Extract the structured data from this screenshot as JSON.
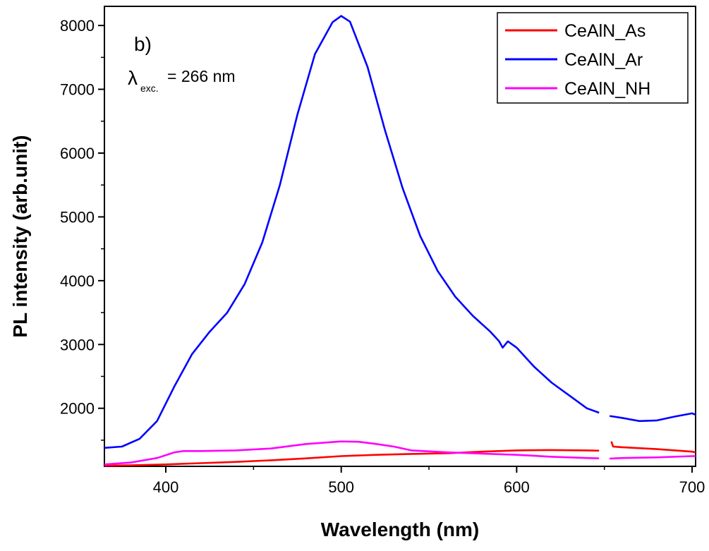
{
  "chart_data": {
    "type": "line",
    "panel_label": "b)",
    "annotation": {
      "symbol": "λ",
      "subscript": "exc.",
      "text": "= 266 nm"
    },
    "xlabel": "Wavelength (nm)",
    "ylabel": "PL intensity (arb.unit)",
    "xlim": [
      365,
      702
    ],
    "ylim": [
      1090,
      8300
    ],
    "xticks": [
      400,
      500,
      600,
      700
    ],
    "yticks": [
      2000,
      3000,
      4000,
      5000,
      6000,
      7000,
      8000
    ],
    "grid": false,
    "legend_position": "top-right",
    "series": [
      {
        "name": "CeAlN_As",
        "color": "#ff0000",
        "x": [
          365,
          380,
          400,
          420,
          440,
          460,
          480,
          500,
          520,
          540,
          560,
          580,
          600,
          620,
          640,
          647,
          null,
          654,
          655,
          660,
          680,
          700,
          702
        ],
        "y": [
          1100,
          1105,
          1120,
          1140,
          1160,
          1185,
          1215,
          1250,
          1270,
          1285,
          1295,
          1320,
          1340,
          1345,
          1340,
          1335,
          null,
          1480,
          1400,
          1390,
          1360,
          1320,
          1310
        ]
      },
      {
        "name": "CeAlN_Ar",
        "color": "#0000ff",
        "x": [
          365,
          375,
          385,
          395,
          405,
          415,
          425,
          435,
          445,
          455,
          465,
          475,
          485,
          495,
          500,
          505,
          515,
          525,
          535,
          545,
          555,
          565,
          575,
          585,
          590,
          592,
          595,
          600,
          610,
          620,
          630,
          640,
          647,
          null,
          653,
          660,
          670,
          680,
          690,
          700,
          702
        ],
        "y": [
          1380,
          1400,
          1520,
          1800,
          2350,
          2850,
          3200,
          3500,
          3950,
          4600,
          5500,
          6600,
          7550,
          8050,
          8150,
          8060,
          7350,
          6350,
          5450,
          4700,
          4150,
          3750,
          3450,
          3200,
          3050,
          2950,
          3050,
          2950,
          2650,
          2400,
          2200,
          2000,
          1930,
          null,
          1880,
          1850,
          1800,
          1810,
          1870,
          1920,
          1900
        ]
      },
      {
        "name": "CeAlN_NH",
        "color": "#ff00ff",
        "x": [
          365,
          380,
          395,
          405,
          410,
          420,
          440,
          460,
          480,
          500,
          510,
          520,
          530,
          540,
          560,
          580,
          600,
          620,
          640,
          647,
          null,
          653,
          660,
          680,
          700,
          702
        ],
        "y": [
          1120,
          1150,
          1220,
          1310,
          1330,
          1330,
          1340,
          1370,
          1440,
          1480,
          1475,
          1440,
          1400,
          1340,
          1310,
          1290,
          1270,
          1240,
          1220,
          1215,
          null,
          1210,
          1220,
          1230,
          1250,
          1250
        ]
      }
    ]
  }
}
